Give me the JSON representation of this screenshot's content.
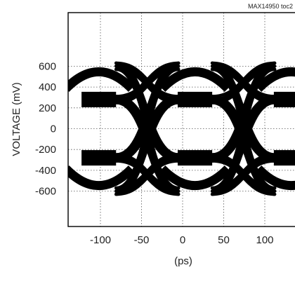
{
  "chart_data": {
    "type": "line",
    "chart_id": "MAX14950 toc2",
    "title": "",
    "xlabel": "(ps)",
    "ylabel": "VOLTAGE (mV)",
    "xlim": [
      -125,
      130
    ],
    "ylim": [
      -700,
      700
    ],
    "x_ticks": [
      -100,
      -50,
      0,
      50,
      100
    ],
    "y_ticks": [
      600,
      400,
      200,
      0,
      -200,
      -400,
      -600
    ],
    "grid": true,
    "grid_style": "dotted",
    "unit_interval_ps": 117,
    "crossing_centers_ps": [
      -43,
      74
    ],
    "eye_centers_ps": [
      -102,
      15,
      132
    ],
    "levels_mV": {
      "outer_high": 600,
      "inner_high": 280,
      "inner_low": -280,
      "outer_low": -600
    },
    "trace_color": "#000000"
  }
}
